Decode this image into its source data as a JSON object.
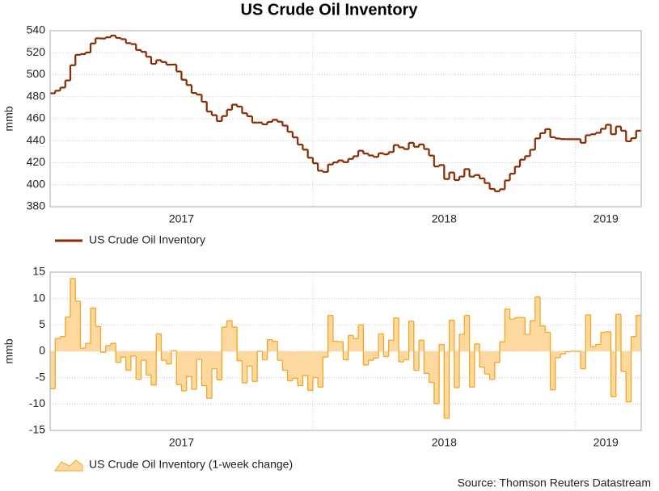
{
  "chart_data": [
    {
      "type": "step",
      "title": "US Crude Oil Inventory",
      "y_label": "mmb",
      "x": [
        0,
        1,
        2,
        3,
        4,
        5,
        6,
        7,
        8,
        9,
        10,
        11,
        12,
        13,
        14,
        15,
        16,
        17,
        18,
        19,
        20,
        21,
        22,
        23,
        24,
        25,
        26,
        27,
        28,
        29,
        30,
        31,
        32,
        33,
        34,
        35,
        36,
        37,
        38,
        39,
        40,
        41,
        42,
        43,
        44,
        45,
        46,
        47,
        48,
        49,
        50,
        51,
        52,
        53,
        54,
        55,
        56,
        57,
        58,
        59,
        60,
        61,
        62,
        63,
        64,
        65,
        66,
        67,
        68,
        69,
        70,
        71,
        72,
        73,
        74,
        75,
        76,
        77,
        78,
        79,
        80,
        81,
        82,
        83,
        84,
        85,
        86,
        87,
        88,
        89,
        90,
        91,
        92,
        93,
        94,
        95,
        96,
        97,
        98,
        99,
        100,
        101,
        102,
        103,
        104,
        105,
        106,
        107,
        108,
        109,
        110,
        111,
        112,
        113,
        114,
        115,
        116
      ],
      "series": [
        {
          "name": "US Crude Oil Inventory",
          "color": "#8b2a00",
          "values": [
            483.1,
            485.5,
            488.3,
            494.8,
            508.6,
            518.1,
            518.7,
            520.2,
            528.4,
            533.1,
            532.9,
            534.0,
            535.5,
            533.4,
            532.3,
            528.7,
            527.8,
            522.5,
            520.8,
            516.3,
            509.9,
            513.2,
            511.5,
            509.1,
            509.2,
            502.9,
            495.4,
            490.6,
            483.4,
            481.9,
            475.4,
            466.5,
            463.2,
            457.8,
            462.4,
            468.2,
            472.8,
            471.0,
            465.0,
            462.2,
            456.5,
            456.5,
            454.9,
            457.1,
            459.0,
            457.3,
            453.7,
            448.1,
            443.0,
            436.5,
            431.9,
            424.5,
            419.5,
            412.7,
            411.6,
            418.4,
            420.3,
            422.1,
            420.5,
            423.5,
            425.9,
            430.9,
            428.3,
            426.6,
            425.3,
            428.6,
            427.6,
            429.7,
            436.0,
            434.0,
            432.4,
            438.1,
            434.5,
            436.6,
            432.4,
            426.5,
            416.6,
            417.9,
            405.2,
            411.1,
            404.2,
            407.4,
            414.2,
            407.4,
            408.8,
            405.8,
            401.5,
            396.2,
            394.1,
            395.9,
            403.9,
            410.0,
            416.4,
            422.8,
            426.0,
            431.8,
            442.1,
            446.9,
            450.5,
            443.2,
            442.0,
            441.5,
            441.4,
            441.4,
            441.4,
            438.1,
            445.0,
            445.9,
            447.2,
            450.8,
            454.5,
            445.9,
            452.9,
            449.1,
            439.5,
            442.3,
            449.1
          ]
        }
      ],
      "xlim": [
        0,
        117
      ],
      "xticks": [
        {
          "value": 26,
          "label": "2017"
        },
        {
          "value": 78,
          "label": "2018"
        },
        {
          "value": 110,
          "label": "2019"
        }
      ],
      "xgrid": [
        52,
        104
      ],
      "ylim": [
        380,
        540
      ],
      "yticks": [
        380,
        400,
        420,
        440,
        460,
        480,
        500,
        520,
        540
      ],
      "grid": true
    },
    {
      "type": "step-area",
      "y_label": "mmb",
      "x": [
        0,
        1,
        2,
        3,
        4,
        5,
        6,
        7,
        8,
        9,
        10,
        11,
        12,
        13,
        14,
        15,
        16,
        17,
        18,
        19,
        20,
        21,
        22,
        23,
        24,
        25,
        26,
        27,
        28,
        29,
        30,
        31,
        32,
        33,
        34,
        35,
        36,
        37,
        38,
        39,
        40,
        41,
        42,
        43,
        44,
        45,
        46,
        47,
        48,
        49,
        50,
        51,
        52,
        53,
        54,
        55,
        56,
        57,
        58,
        59,
        60,
        61,
        62,
        63,
        64,
        65,
        66,
        67,
        68,
        69,
        70,
        71,
        72,
        73,
        74,
        75,
        76,
        77,
        78,
        79,
        80,
        81,
        82,
        83,
        84,
        85,
        86,
        87,
        88,
        89,
        90,
        91,
        92,
        93,
        94,
        95,
        96,
        97,
        98,
        99,
        100,
        101,
        102,
        103,
        104,
        105,
        106,
        107,
        108,
        109,
        110,
        111,
        112,
        113,
        114,
        115,
        116
      ],
      "series": [
        {
          "name": "US Crude Oil Inventory (1-week change)",
          "color": "#f5a623",
          "fill": "#fdd9a0",
          "values": [
            -7.1,
            2.4,
            2.8,
            6.5,
            13.8,
            9.5,
            0.6,
            1.5,
            8.2,
            4.7,
            -0.2,
            1.1,
            1.5,
            -2.1,
            -1.1,
            -3.6,
            -0.9,
            -5.3,
            -1.7,
            -4.5,
            -6.4,
            3.3,
            -1.7,
            -2.4,
            0.1,
            -6.3,
            -7.5,
            -4.8,
            -7.2,
            -1.5,
            -6.5,
            -8.9,
            -3.3,
            -5.4,
            4.6,
            5.8,
            4.6,
            -1.8,
            -6.0,
            -2.8,
            -5.7,
            0.0,
            -1.6,
            2.2,
            1.9,
            -1.7,
            -3.6,
            -5.6,
            -5.1,
            -6.5,
            -4.6,
            -7.4,
            -5.0,
            -6.8,
            -1.1,
            6.8,
            1.9,
            1.8,
            -1.6,
            3.0,
            2.4,
            5.0,
            -2.6,
            -1.7,
            -1.3,
            3.3,
            -1.0,
            2.1,
            6.3,
            -2.0,
            -1.6,
            5.7,
            -3.6,
            2.1,
            -4.2,
            -5.9,
            -9.9,
            1.3,
            -12.7,
            5.9,
            -6.9,
            3.2,
            6.8,
            -6.8,
            1.4,
            -3.0,
            -4.3,
            -5.3,
            -2.1,
            1.8,
            8.0,
            6.1,
            6.4,
            6.4,
            3.2,
            5.8,
            10.3,
            4.8,
            3.6,
            -7.3,
            -1.2,
            -0.5,
            -0.1,
            0.0,
            0.0,
            -3.3,
            6.9,
            0.9,
            1.3,
            3.6,
            3.7,
            -8.6,
            7.0,
            -3.8,
            -9.6,
            2.8,
            6.8
          ]
        }
      ],
      "xlim": [
        0,
        117
      ],
      "xticks": [
        {
          "value": 26,
          "label": "2017"
        },
        {
          "value": 78,
          "label": "2018"
        },
        {
          "value": 110,
          "label": "2019"
        }
      ],
      "xgrid": [
        52,
        104
      ],
      "ylim": [
        -15,
        15
      ],
      "yticks": [
        -15,
        -10,
        -5,
        0,
        5,
        10,
        15
      ],
      "grid": true,
      "source": "Source: Thomson Reuters Datastream"
    }
  ]
}
